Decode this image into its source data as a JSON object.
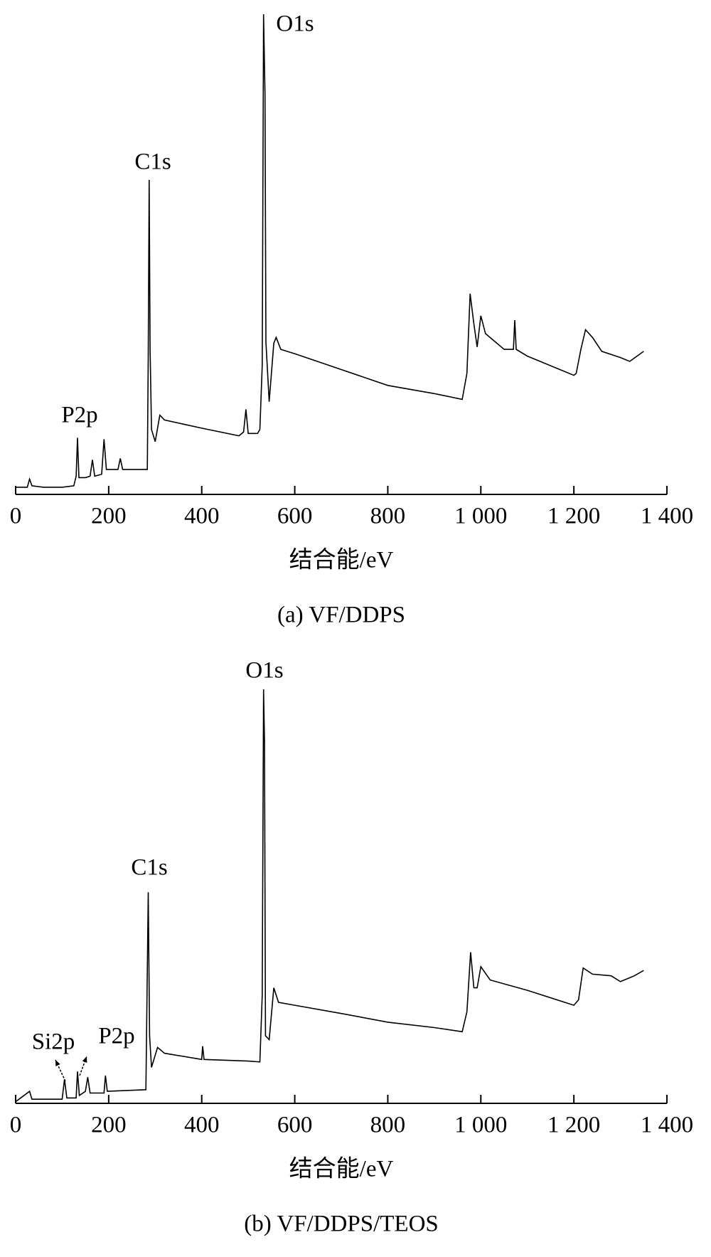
{
  "chart_data": [
    {
      "type": "line",
      "caption": "(a)  VF/DDPS",
      "xlabel": "结合能/eV",
      "annotations": [
        "O1s",
        "C1s",
        "P2p"
      ],
      "xlim": [
        0,
        1400
      ],
      "ylim": [
        0,
        100
      ],
      "xticks": [
        0,
        200,
        400,
        600,
        800,
        {
          "value": 1000,
          "label": "1 000"
        },
        {
          "value": 1200,
          "label": "1 200"
        },
        {
          "value": 1400,
          "label": "1 400"
        }
      ],
      "color": "#000000",
      "x": [
        0,
        25,
        30,
        35,
        60,
        100,
        125,
        130,
        133,
        136,
        150,
        160,
        165,
        170,
        185,
        190,
        195,
        220,
        225,
        230,
        260,
        283,
        285,
        287,
        289,
        292,
        300,
        310,
        320,
        400,
        480,
        490,
        495,
        500,
        520,
        525,
        530,
        533,
        536,
        538,
        545,
        555,
        560,
        570,
        600,
        700,
        800,
        900,
        960,
        970,
        977,
        985,
        992,
        1000,
        1010,
        1050,
        1070,
        1073,
        1076,
        1100,
        1200,
        1205,
        1215,
        1225,
        1240,
        1260,
        1300,
        1320,
        1350
      ],
      "values": [
        1.5,
        1.5,
        3.2,
        1.8,
        1.5,
        1.5,
        1.8,
        3.8,
        11.8,
        3.5,
        3.5,
        3.8,
        7.2,
        3.8,
        4.2,
        11.5,
        5.2,
        5.2,
        7.5,
        5.2,
        5.2,
        5.2,
        28.8,
        65.5,
        30.2,
        13.5,
        11,
        16.5,
        15.5,
        13.8,
        12.2,
        13,
        17.7,
        12.7,
        12.7,
        13.5,
        26.8,
        100,
        83.5,
        31.8,
        19.3,
        31.5,
        32.7,
        30.2,
        29.3,
        26,
        22.7,
        21,
        19.8,
        25.2,
        41.8,
        35.5,
        30.7,
        37.2,
        33.5,
        30.2,
        30.2,
        36.3,
        30.2,
        28.8,
        24.8,
        25.2,
        30.2,
        34.3,
        32.7,
        29.8,
        28.5,
        27.7,
        29.8
      ]
    },
    {
      "type": "line",
      "caption": "(b)  VF/DDPS/TEOS",
      "xlabel": "结合能/eV",
      "annotations": [
        "O1s",
        "C1s",
        "Si2p",
        "P2p"
      ],
      "xlim": [
        0,
        1400
      ],
      "ylim": [
        0,
        100
      ],
      "xticks": [
        0,
        200,
        400,
        600,
        800,
        {
          "value": 1000,
          "label": "1 000"
        },
        {
          "value": 1200,
          "label": "1 200"
        },
        {
          "value": 1400,
          "label": "1 400"
        }
      ],
      "color": "#000000",
      "x": [
        0,
        30,
        35,
        100,
        105,
        110,
        130,
        133,
        137,
        150,
        155,
        160,
        190,
        193,
        197,
        280,
        285,
        288,
        292,
        305,
        320,
        400,
        402,
        405,
        500,
        525,
        530,
        533,
        535,
        537,
        545,
        555,
        565,
        600,
        700,
        800,
        900,
        960,
        970,
        978,
        985,
        992,
        1000,
        1020,
        1100,
        1200,
        1210,
        1220,
        1240,
        1280,
        1300,
        1330,
        1350
      ],
      "values": [
        0.4,
        2.9,
        1,
        1,
        5.8,
        1.3,
        1.3,
        7.7,
        1.9,
        2.9,
        6.3,
        2.5,
        2.5,
        6.7,
        2.9,
        3.3,
        51,
        16.3,
        8.7,
        13.5,
        12.1,
        10.6,
        13.8,
        10.6,
        10.2,
        10,
        26,
        100,
        87.5,
        16.3,
        15.4,
        27.9,
        24.4,
        23.7,
        21.7,
        19.6,
        18.3,
        17.3,
        22.1,
        36.5,
        27.9,
        27.9,
        33,
        29.8,
        27.3,
        23.7,
        25,
        32.7,
        31.2,
        30.8,
        29.4,
        30.8,
        32.1
      ]
    }
  ]
}
